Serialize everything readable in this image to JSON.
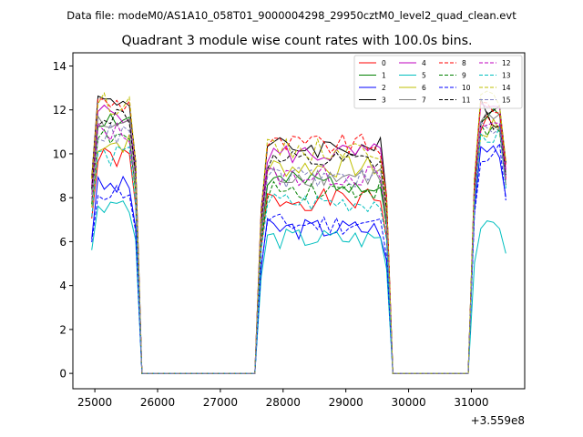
{
  "suptitle": "Data file: modeM0/AS1A10_058T01_9000004298_29950cztM0_level2_quad_clean.evt",
  "chart_data": {
    "type": "line",
    "title": "Quadrant 3 module wise count rates with 100.0s bins.",
    "xlabel": "",
    "ylabel": "",
    "x_offset_label": "+3.559e8",
    "xlim": [
      24650,
      31850
    ],
    "ylim": [
      -0.7,
      14.6
    ],
    "x_ticks": [
      25000,
      26000,
      27000,
      28000,
      29000,
      30000,
      31000
    ],
    "x_tick_labels": [
      "25000",
      "26000",
      "27000",
      "28000",
      "29000",
      "30000",
      "31000"
    ],
    "y_ticks": [
      0,
      2,
      4,
      6,
      8,
      10,
      12,
      14
    ],
    "y_tick_labels": [
      "0",
      "2",
      "4",
      "6",
      "8",
      "10",
      "12",
      "14"
    ],
    "legend_position": "top-right",
    "segments": [
      {
        "start": 24950,
        "end": 25650
      },
      {
        "start": 27650,
        "end": 29650
      },
      {
        "start": 31050,
        "end": 31550
      }
    ],
    "gaps": [
      {
        "start": 25750,
        "end": 27450
      },
      {
        "start": 29750,
        "end": 30950
      }
    ],
    "series": [
      {
        "name": "0",
        "color": "#ff0000",
        "dash": false,
        "levels": [
          9.8,
          7.9,
          11.4
        ]
      },
      {
        "name": "1",
        "color": "#008000",
        "dash": false,
        "levels": [
          11.6,
          8.7,
          11.6
        ]
      },
      {
        "name": "2",
        "color": "#0000ff",
        "dash": false,
        "levels": [
          8.5,
          6.6,
          10.3
        ]
      },
      {
        "name": "3",
        "color": "#000000",
        "dash": false,
        "levels": [
          12.4,
          10.3,
          12.3
        ]
      },
      {
        "name": "4",
        "color": "#bf00bf",
        "dash": false,
        "levels": [
          11.9,
          10.0,
          11.9
        ]
      },
      {
        "name": "5",
        "color": "#00bfbf",
        "dash": false,
        "levels": [
          7.8,
          6.1,
          7.0
        ]
      },
      {
        "name": "6",
        "color": "#bfbf00",
        "dash": false,
        "levels": [
          10.5,
          9.4,
          11.1
        ]
      },
      {
        "name": "7",
        "color": "#808080",
        "dash": false,
        "levels": [
          11.3,
          9.0,
          11.5
        ]
      },
      {
        "name": "8",
        "color": "#ff0000",
        "dash": true,
        "levels": [
          12.3,
          10.4,
          12.2
        ]
      },
      {
        "name": "9",
        "color": "#008000",
        "dash": true,
        "levels": [
          10.7,
          8.4,
          11.0
        ]
      },
      {
        "name": "10",
        "color": "#0000ff",
        "dash": true,
        "levels": [
          8.3,
          6.8,
          10.1
        ]
      },
      {
        "name": "11",
        "color": "#000000",
        "dash": true,
        "levels": [
          11.7,
          9.6,
          11.6
        ]
      },
      {
        "name": "12",
        "color": "#bf00bf",
        "dash": true,
        "levels": [
          11.0,
          9.0,
          11.3
        ]
      },
      {
        "name": "13",
        "color": "#00bfbf",
        "dash": true,
        "levels": [
          9.9,
          7.8,
          10.8
        ]
      },
      {
        "name": "14",
        "color": "#bfbf00",
        "dash": true,
        "levels": [
          12.3,
          10.2,
          12.4
        ]
      },
      {
        "name": "15",
        "color": "#8080c0",
        "dash": true,
        "levels": [
          10.9,
          8.9,
          11.0
        ]
      }
    ]
  }
}
